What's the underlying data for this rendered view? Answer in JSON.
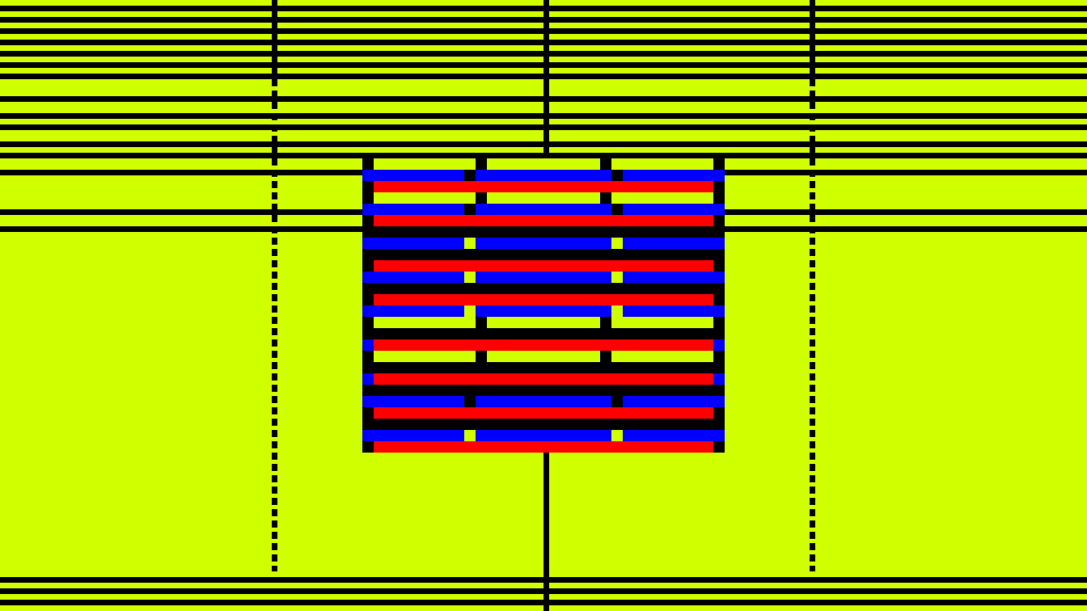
{
  "colors": {
    "background": "#d0ff00",
    "line": "#000000",
    "block": "#000000",
    "blue": "#0000ff",
    "red": "#ff0000",
    "yellow": "#d0ff00"
  },
  "description_elements": {
    "pattern": "abstract-stripe-pattern"
  }
}
